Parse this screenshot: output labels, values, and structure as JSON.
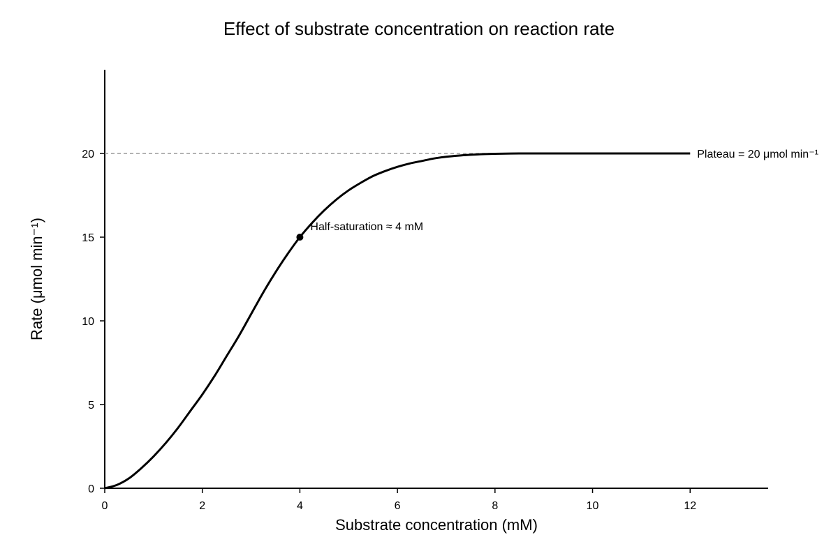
{
  "chart_data": {
    "type": "line",
    "title": "Effect of substrate concentration on reaction rate",
    "xlabel": "Substrate concentration (mM)",
    "ylabel": "Rate (μmol min⁻¹)",
    "xlim": [
      0,
      13.6
    ],
    "ylim": [
      0,
      25
    ],
    "xticks": [
      0,
      2,
      4,
      6,
      8,
      10,
      12
    ],
    "yticks": [
      0,
      5,
      10,
      15,
      20
    ],
    "grid": false,
    "legend": "none",
    "colors": {
      "line": "#000000",
      "reference": "#999999",
      "axis": "#000000"
    },
    "series": [
      {
        "x": [
          0,
          0.25,
          0.5,
          0.75,
          1,
          1.25,
          1.5,
          1.75,
          2,
          2.25,
          2.5,
          2.75,
          3,
          3.25,
          3.5,
          3.75,
          4,
          4.25,
          4.5,
          4.75,
          5,
          5.25,
          5.5,
          5.75,
          6,
          6.25,
          6.5,
          6.75,
          7,
          7.25,
          7.5,
          7.75,
          8,
          8.5,
          9,
          9.5,
          10,
          10.5,
          11,
          11.5,
          12
        ],
        "y": [
          0,
          0.2,
          0.6,
          1.2,
          1.9,
          2.7,
          3.6,
          4.6,
          5.6,
          6.7,
          7.9,
          9.1,
          10.4,
          11.7,
          12.9,
          14.0,
          15.0,
          15.85,
          16.6,
          17.25,
          17.8,
          18.25,
          18.65,
          18.95,
          19.2,
          19.4,
          19.55,
          19.7,
          19.8,
          19.87,
          19.92,
          19.96,
          19.98,
          20.0,
          20.0,
          20.0,
          20.0,
          20.0,
          20.0,
          20.0,
          20.0
        ]
      }
    ],
    "reference_line": {
      "y": 20,
      "x_range": [
        0,
        12
      ],
      "label": "Plateau = 20 μmol min⁻¹"
    },
    "highlight_point": {
      "x": 4,
      "y": 15,
      "label": "Half-saturation ≈ 4 mM"
    }
  }
}
